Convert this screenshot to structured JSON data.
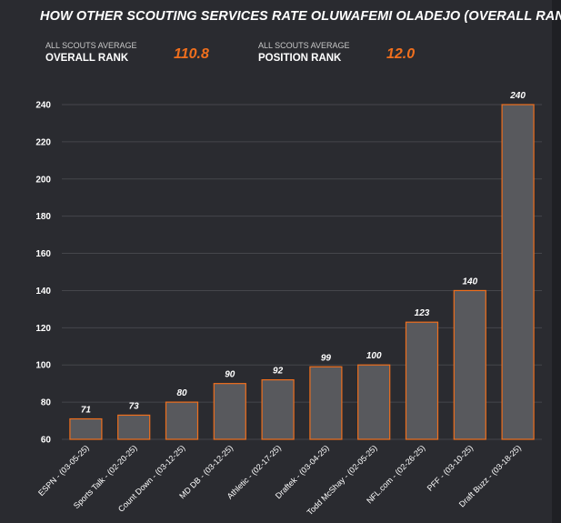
{
  "header": {
    "title": "HOW OTHER SCOUTING SERVICES RATE OLUWAFEMI OLADEJO (OVERALL RANK)"
  },
  "stats": [
    {
      "small_label": "ALL SCOUTS AVERAGE",
      "label": "OVERALL RANK",
      "value": "110.8"
    },
    {
      "small_label": "ALL SCOUTS AVERAGE",
      "label": "POSITION RANK",
      "value": "12.0"
    }
  ],
  "colors": {
    "accent": "#f06f1d",
    "bar_fill": "#58595d",
    "bar_stroke": "#f06f1d",
    "grid": "#45464b"
  },
  "chart_data": {
    "type": "bar",
    "title": "HOW OTHER SCOUTING SERVICES RATE OLUWAFEMI OLADEJO (OVERALL RANK)",
    "xlabel": "",
    "ylabel": "",
    "ylim": [
      60,
      240
    ],
    "yticks": [
      60,
      80,
      100,
      120,
      140,
      160,
      180,
      200,
      220,
      240
    ],
    "grid": true,
    "categories": [
      "ESPN - (03-05-25)",
      "Sports Talk - (02-20-25)",
      "Count Down - (03-12-25)",
      "MD DB - (03-12-25)",
      "Athletic - (02-17-25)",
      "Draftek - (03-04-25)",
      "Todd McShay - (02-05-25)",
      "NFL.com - (02-26-25)",
      "PFF - (03-10-25)",
      "Draft Buzz - (03-18-25)"
    ],
    "values": [
      71,
      73,
      80,
      90,
      92,
      99,
      100,
      123,
      140,
      240
    ]
  }
}
